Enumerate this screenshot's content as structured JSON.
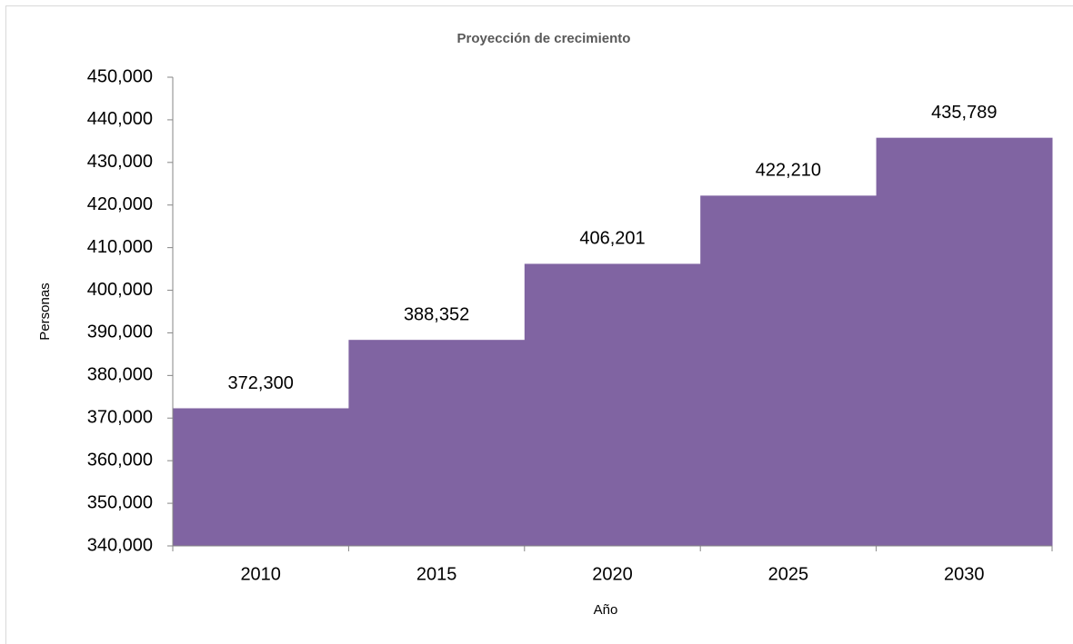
{
  "chart_data": {
    "type": "bar",
    "title": "Proyección de crecimiento",
    "x_label": "Año",
    "y_label": "Personas",
    "categories": [
      "2010",
      "2015",
      "2020",
      "2025",
      "2030"
    ],
    "values": [
      372300,
      388352,
      406201,
      422210,
      435789
    ],
    "value_labels": [
      "372,300",
      "388,352",
      "406,201",
      "422,210",
      "435,789"
    ],
    "color": "#8064a2",
    "ylim": [
      340000,
      450000
    ],
    "yticks": [
      {
        "value": 340000,
        "label": "340,000"
      },
      {
        "value": 350000,
        "label": "350,000"
      },
      {
        "value": 360000,
        "label": "360,000"
      },
      {
        "value": 370000,
        "label": "370,000"
      },
      {
        "value": 380000,
        "label": "380,000"
      },
      {
        "value": 390000,
        "label": "390,000"
      },
      {
        "value": 400000,
        "label": "400,000"
      },
      {
        "value": 410000,
        "label": "410,000"
      },
      {
        "value": 420000,
        "label": "420,000"
      },
      {
        "value": 430000,
        "label": "430,000"
      },
      {
        "value": 440000,
        "label": "440,000"
      },
      {
        "value": 450000,
        "label": "450,000"
      }
    ]
  }
}
